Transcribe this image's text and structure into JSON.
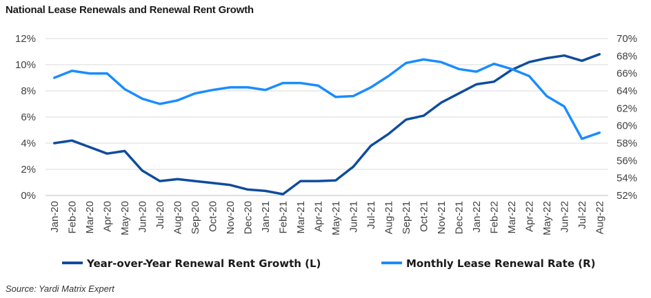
{
  "title": "National Lease Renewals and Renewal Rent Growth",
  "source": "Source: Yardi Matrix Expert",
  "chart_data": {
    "type": "line",
    "title": "National Lease Renewals and Renewal Rent Growth",
    "categories": [
      "Jan-20",
      "Feb-20",
      "Mar-20",
      "Apr-20",
      "May-20",
      "Jun-20",
      "Jul-20",
      "Aug-20",
      "Sep-20",
      "Oct-20",
      "Nov-20",
      "Dec-20",
      "Jan-21",
      "Feb-21",
      "Mar-21",
      "Apr-21",
      "May-21",
      "Jun-21",
      "Jul-21",
      "Aug-21",
      "Sep-21",
      "Oct-21",
      "Nov-21",
      "Dec-21",
      "Jan-22",
      "Feb-22",
      "Mar-22",
      "Apr-22",
      "May-22",
      "Jun-22",
      "Jul-22",
      "Aug-22"
    ],
    "left_axis": {
      "min": 0,
      "max": 12,
      "ticks": [
        "0%",
        "2%",
        "4%",
        "6%",
        "8%",
        "10%",
        "12%"
      ],
      "tick_values": [
        0,
        2,
        4,
        6,
        8,
        10,
        12
      ]
    },
    "right_axis": {
      "min": 52,
      "max": 70,
      "ticks": [
        "52%",
        "54%",
        "56%",
        "58%",
        "60%",
        "62%",
        "64%",
        "66%",
        "68%",
        "70%"
      ],
      "tick_values": [
        52,
        54,
        56,
        58,
        60,
        62,
        64,
        66,
        68,
        70
      ]
    },
    "grid": true,
    "legend_position": "bottom",
    "series": [
      {
        "name": "Year-over-Year Renewal Rent Growth (L)",
        "axis": "left",
        "color": "#0f4c9c",
        "values": [
          4.0,
          4.2,
          3.7,
          3.2,
          3.4,
          1.9,
          1.1,
          1.25,
          1.1,
          0.95,
          0.8,
          0.45,
          0.35,
          0.1,
          1.1,
          1.1,
          1.15,
          2.2,
          3.8,
          4.7,
          5.8,
          6.1,
          7.1,
          7.8,
          8.5,
          8.7,
          9.6,
          10.2,
          10.5,
          10.7,
          10.3,
          10.8
        ]
      },
      {
        "name": "Monthly Lease Renewal Rate (R)",
        "axis": "right",
        "color": "#1a8cff",
        "values": [
          65.5,
          66.3,
          66.0,
          66.0,
          64.2,
          63.1,
          62.5,
          62.9,
          63.7,
          64.1,
          64.4,
          64.4,
          64.1,
          64.9,
          64.9,
          64.6,
          63.3,
          63.4,
          64.4,
          65.7,
          67.2,
          67.6,
          67.3,
          66.5,
          66.2,
          67.1,
          66.5,
          65.7,
          63.4,
          62.2,
          58.5,
          59.2
        ]
      }
    ]
  }
}
